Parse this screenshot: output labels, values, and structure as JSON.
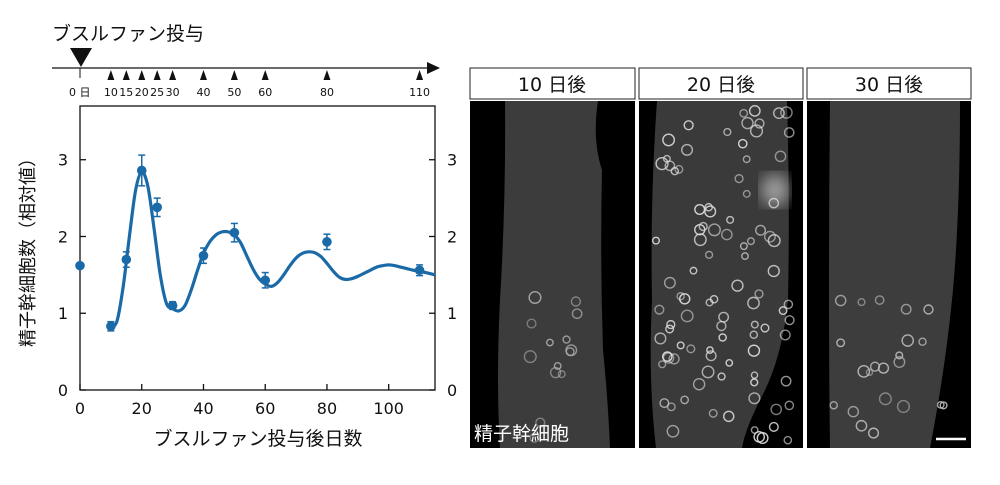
{
  "timeline": {
    "title": "ブスルファン投与",
    "tick_labels": [
      "0 日",
      "10",
      "15",
      "20",
      "25",
      "30",
      "40",
      "50",
      "60",
      "80",
      "110"
    ],
    "tick_days": [
      0,
      10,
      15,
      20,
      25,
      30,
      40,
      50,
      60,
      80,
      110
    ]
  },
  "chart_data": {
    "type": "scatter",
    "title": "",
    "xlabel": "ブスルファン投与後日数",
    "ylabel": "精子幹細胞数（相対値）",
    "xlim": [
      0,
      115
    ],
    "ylim": [
      0,
      3.7
    ],
    "x_ticks": [
      0,
      20,
      40,
      60,
      80,
      100
    ],
    "y_ticks": [
      0,
      1,
      2,
      3
    ],
    "legend": "none",
    "grid": false,
    "color": "#1b6aa8",
    "series": [
      {
        "points": [
          {
            "x": 0,
            "y": 1.62,
            "err": 0.0
          },
          {
            "x": 10,
            "y": 0.83,
            "err": 0.06
          },
          {
            "x": 15,
            "y": 1.7,
            "err": 0.1
          },
          {
            "x": 20,
            "y": 2.86,
            "err": 0.2
          },
          {
            "x": 25,
            "y": 2.38,
            "err": 0.12
          },
          {
            "x": 30,
            "y": 1.1,
            "err": 0.05
          },
          {
            "x": 40,
            "y": 1.75,
            "err": 0.1
          },
          {
            "x": 50,
            "y": 2.05,
            "err": 0.12
          },
          {
            "x": 60,
            "y": 1.43,
            "err": 0.1
          },
          {
            "x": 80,
            "y": 1.93,
            "err": 0.1
          },
          {
            "x": 110,
            "y": 1.56,
            "err": 0.07
          }
        ]
      }
    ],
    "fit_curve": {
      "x": [
        10,
        12,
        14,
        16,
        18,
        20,
        22,
        24,
        26,
        28,
        30,
        32,
        34,
        36,
        38,
        40,
        42,
        44,
        46,
        48,
        50,
        52,
        54,
        56,
        58,
        60,
        62,
        64,
        66,
        68,
        70,
        72,
        74,
        76,
        78,
        80,
        82,
        84,
        86,
        88,
        90,
        92,
        94,
        96,
        98,
        100,
        102,
        104,
        106,
        108,
        110,
        112,
        115
      ],
      "y": [
        0.82,
        0.9,
        1.35,
        2.0,
        2.6,
        2.84,
        2.65,
        2.1,
        1.5,
        1.13,
        1.06,
        1.03,
        1.1,
        1.3,
        1.55,
        1.78,
        1.93,
        2.02,
        2.06,
        2.06,
        2.02,
        1.92,
        1.75,
        1.58,
        1.45,
        1.38,
        1.35,
        1.4,
        1.5,
        1.62,
        1.72,
        1.78,
        1.8,
        1.79,
        1.74,
        1.65,
        1.55,
        1.47,
        1.44,
        1.45,
        1.48,
        1.52,
        1.56,
        1.6,
        1.62,
        1.63,
        1.62,
        1.6,
        1.58,
        1.56,
        1.55,
        1.53,
        1.5
      ]
    }
  },
  "micrographs": [
    {
      "label": "10 日後"
    },
    {
      "label": "20 日後"
    },
    {
      "label": "30 日後"
    }
  ],
  "micrograph_caption": "精子幹細胞"
}
